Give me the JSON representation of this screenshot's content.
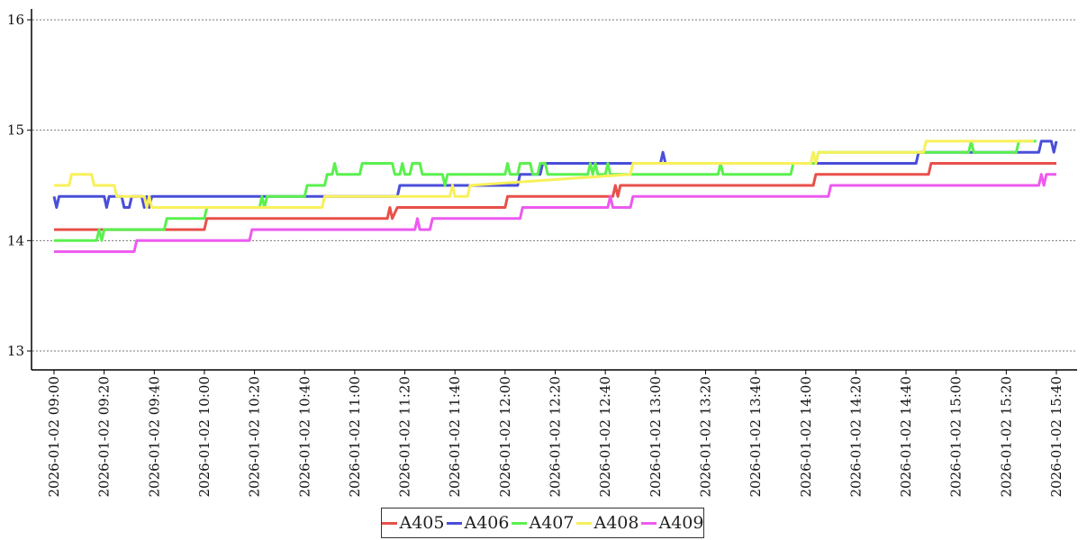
{
  "chart_data": {
    "type": "line",
    "title": "",
    "xlabel": "",
    "ylabel": "",
    "ylim": [
      12.9,
      16.1
    ],
    "yticks": [
      13,
      14,
      15,
      16
    ],
    "grid": "horizontal dotted",
    "legend_position": "bottom-center",
    "xticks": [
      "2026-01-02 09:00",
      "2026-01-02 09:20",
      "2026-01-02 09:40",
      "2026-01-02 10:00",
      "2026-01-02 10:20",
      "2026-01-02 10:40",
      "2026-01-02 11:00",
      "2026-01-02 11:20",
      "2026-01-02 11:40",
      "2026-01-02 12:00",
      "2026-01-02 12:20",
      "2026-01-02 12:40",
      "2026-01-02 13:00",
      "2026-01-02 13:20",
      "2026-01-02 13:40",
      "2026-01-02 14:00",
      "2026-01-02 14:20",
      "2026-01-02 14:40",
      "2026-01-02 15:00",
      "2026-01-02 15:20",
      "2026-01-02 15:40"
    ],
    "series": [
      {
        "name": "A405",
        "color": "#e8504a",
        "points": [
          [
            "2026-01-02 09:00",
            14.1
          ],
          [
            "2026-01-02 10:00",
            14.1
          ],
          [
            "2026-01-02 10:01",
            14.2
          ],
          [
            "2026-01-02 11:13",
            14.2
          ],
          [
            "2026-01-02 11:14",
            14.3
          ],
          [
            "2026-01-02 11:15",
            14.2
          ],
          [
            "2026-01-02 11:17",
            14.3
          ],
          [
            "2026-01-02 12:00",
            14.3
          ],
          [
            "2026-01-02 12:01",
            14.4
          ],
          [
            "2026-01-02 12:43",
            14.4
          ],
          [
            "2026-01-02 12:44",
            14.5
          ],
          [
            "2026-01-02 12:45",
            14.4
          ],
          [
            "2026-01-02 12:46",
            14.5
          ],
          [
            "2026-01-02 14:03",
            14.5
          ],
          [
            "2026-01-02 14:04",
            14.6
          ],
          [
            "2026-01-02 14:49",
            14.6
          ],
          [
            "2026-01-02 14:50",
            14.7
          ],
          [
            "2026-01-02 15:40",
            14.7
          ]
        ]
      },
      {
        "name": "A406",
        "color": "#4a4ed8",
        "points": [
          [
            "2026-01-02 09:00",
            14.4
          ],
          [
            "2026-01-02 09:01",
            14.3
          ],
          [
            "2026-01-02 09:02",
            14.4
          ],
          [
            "2026-01-02 09:20",
            14.4
          ],
          [
            "2026-01-02 09:21",
            14.3
          ],
          [
            "2026-01-02 09:22",
            14.4
          ],
          [
            "2026-01-02 09:27",
            14.4
          ],
          [
            "2026-01-02 09:28",
            14.3
          ],
          [
            "2026-01-02 09:30",
            14.3
          ],
          [
            "2026-01-02 09:31",
            14.4
          ],
          [
            "2026-01-02 09:35",
            14.4
          ],
          [
            "2026-01-02 09:36",
            14.3
          ],
          [
            "2026-01-02 09:37",
            14.4
          ],
          [
            "2026-01-02 09:38",
            14.3
          ],
          [
            "2026-01-02 09:39",
            14.4
          ],
          [
            "2026-01-02 11:17",
            14.4
          ],
          [
            "2026-01-02 11:18",
            14.5
          ],
          [
            "2026-01-02 12:05",
            14.5
          ],
          [
            "2026-01-02 12:06",
            14.6
          ],
          [
            "2026-01-02 12:14",
            14.6
          ],
          [
            "2026-01-02 12:15",
            14.7
          ],
          [
            "2026-01-02 13:02",
            14.7
          ],
          [
            "2026-01-02 13:03",
            14.8
          ],
          [
            "2026-01-02 13:04",
            14.7
          ],
          [
            "2026-01-02 14:44",
            14.7
          ],
          [
            "2026-01-02 14:45",
            14.8
          ],
          [
            "2026-01-02 15:33",
            14.8
          ],
          [
            "2026-01-02 15:34",
            14.9
          ],
          [
            "2026-01-02 15:38",
            14.9
          ],
          [
            "2026-01-02 15:39",
            14.8
          ],
          [
            "2026-01-02 15:40",
            14.9
          ]
        ]
      },
      {
        "name": "A407",
        "color": "#5af04e",
        "points": [
          [
            "2026-01-02 09:00",
            14.0
          ],
          [
            "2026-01-02 09:17",
            14.0
          ],
          [
            "2026-01-02 09:18",
            14.1
          ],
          [
            "2026-01-02 09:19",
            14.0
          ],
          [
            "2026-01-02 09:20",
            14.1
          ],
          [
            "2026-01-02 09:44",
            14.1
          ],
          [
            "2026-01-02 09:45",
            14.2
          ],
          [
            "2026-01-02 10:00",
            14.2
          ],
          [
            "2026-01-02 10:01",
            14.3
          ],
          [
            "2026-01-02 10:22",
            14.3
          ],
          [
            "2026-01-02 10:23",
            14.4
          ],
          [
            "2026-01-02 10:24",
            14.3
          ],
          [
            "2026-01-02 10:25",
            14.4
          ],
          [
            "2026-01-02 10:40",
            14.4
          ],
          [
            "2026-01-02 10:41",
            14.5
          ],
          [
            "2026-01-02 10:48",
            14.5
          ],
          [
            "2026-01-02 10:49",
            14.6
          ],
          [
            "2026-01-02 10:51",
            14.6
          ],
          [
            "2026-01-02 10:52",
            14.7
          ],
          [
            "2026-01-02 10:53",
            14.6
          ],
          [
            "2026-01-02 11:02",
            14.6
          ],
          [
            "2026-01-02 11:03",
            14.7
          ],
          [
            "2026-01-02 11:15",
            14.7
          ],
          [
            "2026-01-02 11:16",
            14.6
          ],
          [
            "2026-01-02 11:18",
            14.6
          ],
          [
            "2026-01-02 11:19",
            14.7
          ],
          [
            "2026-01-02 11:20",
            14.6
          ],
          [
            "2026-01-02 11:22",
            14.6
          ],
          [
            "2026-01-02 11:23",
            14.7
          ],
          [
            "2026-01-02 11:26",
            14.7
          ],
          [
            "2026-01-02 11:27",
            14.6
          ],
          [
            "2026-01-02 11:35",
            14.6
          ],
          [
            "2026-01-02 11:36",
            14.5
          ],
          [
            "2026-01-02 11:37",
            14.6
          ],
          [
            "2026-01-02 12:00",
            14.6
          ],
          [
            "2026-01-02 12:01",
            14.7
          ],
          [
            "2026-01-02 12:02",
            14.6
          ],
          [
            "2026-01-02 12:05",
            14.6
          ],
          [
            "2026-01-02 12:06",
            14.7
          ],
          [
            "2026-01-02 12:10",
            14.7
          ],
          [
            "2026-01-02 12:11",
            14.6
          ],
          [
            "2026-01-02 12:13",
            14.6
          ],
          [
            "2026-01-02 12:14",
            14.7
          ],
          [
            "2026-01-02 12:16",
            14.7
          ],
          [
            "2026-01-02 12:17",
            14.6
          ],
          [
            "2026-01-02 12:33",
            14.6
          ],
          [
            "2026-01-02 12:34",
            14.7
          ],
          [
            "2026-01-02 12:35",
            14.6
          ],
          [
            "2026-01-02 12:36",
            14.7
          ],
          [
            "2026-01-02 12:37",
            14.6
          ],
          [
            "2026-01-02 12:40",
            14.6
          ],
          [
            "2026-01-02 12:41",
            14.7
          ],
          [
            "2026-01-02 12:42",
            14.6
          ],
          [
            "2026-01-02 13:25",
            14.6
          ],
          [
            "2026-01-02 13:26",
            14.7
          ],
          [
            "2026-01-02 13:27",
            14.6
          ],
          [
            "2026-01-02 13:54",
            14.6
          ],
          [
            "2026-01-02 13:55",
            14.7
          ],
          [
            "2026-01-02 14:04",
            14.7
          ],
          [
            "2026-01-02 14:05",
            14.8
          ],
          [
            "2026-01-02 15:05",
            14.8
          ],
          [
            "2026-01-02 15:06",
            14.9
          ],
          [
            "2026-01-02 15:07",
            14.8
          ],
          [
            "2026-01-02 15:24",
            14.8
          ],
          [
            "2026-01-02 15:25",
            14.9
          ],
          [
            "2026-01-02 15:32",
            14.9
          ]
        ]
      },
      {
        "name": "A408",
        "color": "#f8f05a",
        "points": [
          [
            "2026-01-02 09:00",
            14.5
          ],
          [
            "2026-01-02 09:06",
            14.5
          ],
          [
            "2026-01-02 09:07",
            14.6
          ],
          [
            "2026-01-02 09:15",
            14.6
          ],
          [
            "2026-01-02 09:16",
            14.5
          ],
          [
            "2026-01-02 09:24",
            14.5
          ],
          [
            "2026-01-02 09:25",
            14.4
          ],
          [
            "2026-01-02 09:36",
            14.4
          ],
          [
            "2026-01-02 09:37",
            14.3
          ],
          [
            "2026-01-02 09:38",
            14.4
          ],
          [
            "2026-01-02 09:39",
            14.3
          ],
          [
            "2026-01-02 10:47",
            14.3
          ],
          [
            "2026-01-02 10:48",
            14.4
          ],
          [
            "2026-01-02 11:22",
            14.4
          ],
          [
            "2026-01-02 11:23",
            14.4
          ],
          [
            "2026-01-02 11:38",
            14.4
          ],
          [
            "2026-01-02 11:39",
            14.5
          ],
          [
            "2026-01-02 11:40",
            14.4
          ],
          [
            "2026-01-02 11:45",
            14.4
          ],
          [
            "2026-01-02 11:46",
            14.5
          ],
          [
            "2026-01-02 12:50",
            14.6
          ],
          [
            "2026-01-02 12:51",
            14.7
          ],
          [
            "2026-01-02 14:02",
            14.7
          ],
          [
            "2026-01-02 14:03",
            14.8
          ],
          [
            "2026-01-02 14:04",
            14.7
          ],
          [
            "2026-01-02 14:05",
            14.8
          ],
          [
            "2026-01-02 14:47",
            14.8
          ],
          [
            "2026-01-02 14:48",
            14.9
          ],
          [
            "2026-01-02 15:31",
            14.9
          ]
        ]
      },
      {
        "name": "A409",
        "color": "#ec5af0",
        "points": [
          [
            "2026-01-02 09:00",
            13.9
          ],
          [
            "2026-01-02 09:32",
            13.9
          ],
          [
            "2026-01-02 09:33",
            14.0
          ],
          [
            "2026-01-02 10:18",
            14.0
          ],
          [
            "2026-01-02 10:19",
            14.1
          ],
          [
            "2026-01-02 11:24",
            14.1
          ],
          [
            "2026-01-02 11:25",
            14.2
          ],
          [
            "2026-01-02 11:26",
            14.1
          ],
          [
            "2026-01-02 11:30",
            14.1
          ],
          [
            "2026-01-02 11:31",
            14.2
          ],
          [
            "2026-01-02 12:06",
            14.2
          ],
          [
            "2026-01-02 12:07",
            14.3
          ],
          [
            "2026-01-02 12:41",
            14.3
          ],
          [
            "2026-01-02 12:42",
            14.4
          ],
          [
            "2026-01-02 12:43",
            14.3
          ],
          [
            "2026-01-02 12:50",
            14.3
          ],
          [
            "2026-01-02 12:51",
            14.4
          ],
          [
            "2026-01-02 14:09",
            14.4
          ],
          [
            "2026-01-02 14:10",
            14.5
          ],
          [
            "2026-01-02 15:33",
            14.5
          ],
          [
            "2026-01-02 15:34",
            14.6
          ],
          [
            "2026-01-02 15:35",
            14.5
          ],
          [
            "2026-01-02 15:36",
            14.6
          ],
          [
            "2026-01-02 15:40",
            14.6
          ]
        ]
      }
    ]
  }
}
